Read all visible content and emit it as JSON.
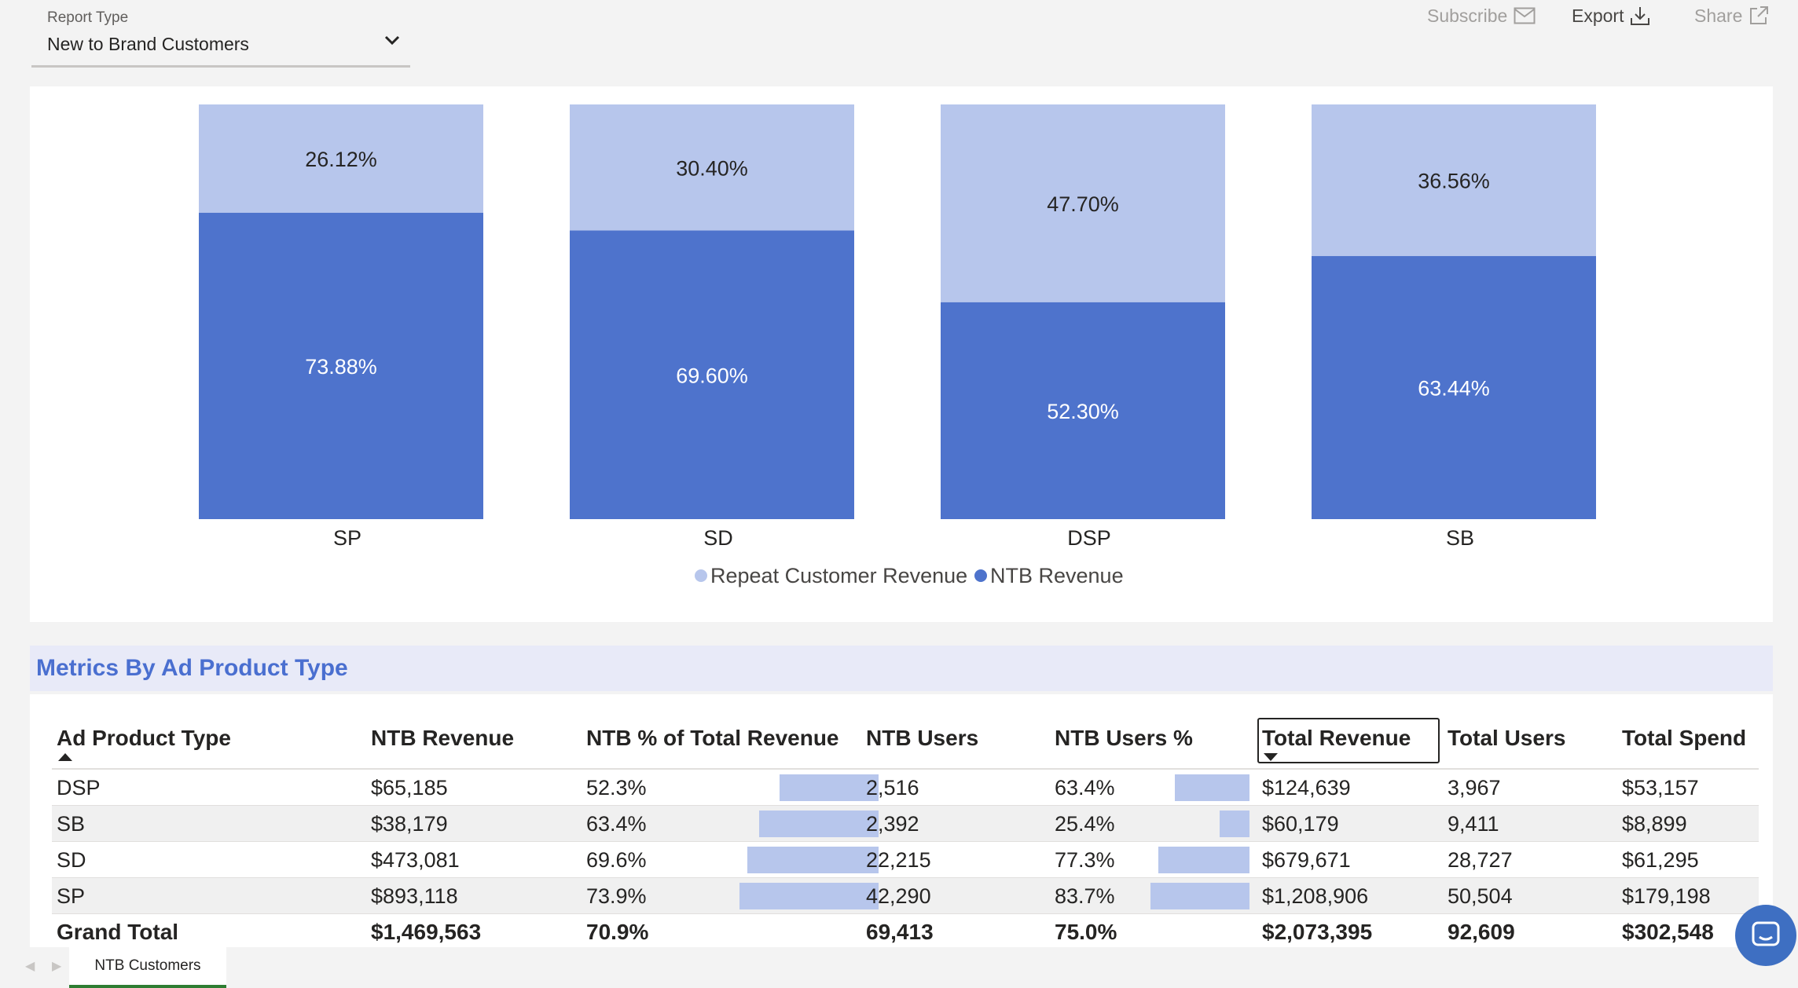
{
  "report_type": {
    "label": "Report Type",
    "value": "New to Brand Customers"
  },
  "actions": {
    "subscribe": "Subscribe",
    "export": "Export",
    "share": "Share"
  },
  "chart_data": {
    "type": "bar",
    "stacked": true,
    "percent_stacked": true,
    "categories": [
      "SP",
      "SD",
      "DSP",
      "SB"
    ],
    "series": [
      {
        "name": "Repeat Customer Revenue",
        "values": [
          26.12,
          30.4,
          47.7,
          36.56
        ],
        "labels": [
          "26.12%",
          "30.40%",
          "47.70%",
          "36.56%"
        ],
        "color": "#b7c6ec"
      },
      {
        "name": "NTB Revenue",
        "values": [
          73.88,
          69.6,
          52.3,
          63.44
        ],
        "labels": [
          "73.88%",
          "69.60%",
          "52.30%",
          "63.44%"
        ],
        "color": "#4e73cc"
      }
    ],
    "ylim": [
      0,
      100
    ],
    "legend_placement": "bottom-center",
    "grid": false
  },
  "metrics": {
    "title": "Metrics By Ad Product Type",
    "columns": [
      "Ad Product Type",
      "NTB Revenue",
      "NTB % of Total Revenue",
      "NTB Users",
      "NTB Users %",
      "Total Revenue",
      "Total Users",
      "Total Spend"
    ],
    "rows": [
      {
        "type": "DSP",
        "ntb_revenue": "$65,185",
        "ntb_pct": "52.3%",
        "ntb_pct_value": 52.3,
        "ntb_users": "2,516",
        "ntb_users_pct": "63.4%",
        "ntb_users_pct_value": 63.4,
        "total_revenue": "$124,639",
        "total_users": "3,967",
        "total_spend": "$53,157"
      },
      {
        "type": "SB",
        "ntb_revenue": "$38,179",
        "ntb_pct": "63.4%",
        "ntb_pct_value": 63.4,
        "ntb_users": "2,392",
        "ntb_users_pct": "25.4%",
        "ntb_users_pct_value": 25.4,
        "total_revenue": "$60,179",
        "total_users": "9,411",
        "total_spend": "$8,899"
      },
      {
        "type": "SD",
        "ntb_revenue": "$473,081",
        "ntb_pct": "69.6%",
        "ntb_pct_value": 69.6,
        "ntb_users": "22,215",
        "ntb_users_pct": "77.3%",
        "ntb_users_pct_value": 77.3,
        "total_revenue": "$679,671",
        "total_users": "28,727",
        "total_spend": "$61,295"
      },
      {
        "type": "SP",
        "ntb_revenue": "$893,118",
        "ntb_pct": "73.9%",
        "ntb_pct_value": 73.9,
        "ntb_users": "42,290",
        "ntb_users_pct": "83.7%",
        "ntb_users_pct_value": 83.7,
        "total_revenue": "$1,208,906",
        "total_users": "50,504",
        "total_spend": "$179,198"
      }
    ],
    "total": {
      "type": "Grand Total",
      "ntb_revenue": "$1,469,563",
      "ntb_pct": "70.9%",
      "ntb_users": "69,413",
      "ntb_users_pct": "75.0%",
      "total_revenue": "$2,073,395",
      "total_users": "92,609",
      "total_spend": "$302,548"
    },
    "sort": {
      "ascending_column": "Ad Product Type",
      "descending_column": "Total Revenue"
    }
  },
  "tabs": [
    "NTB Customers"
  ]
}
